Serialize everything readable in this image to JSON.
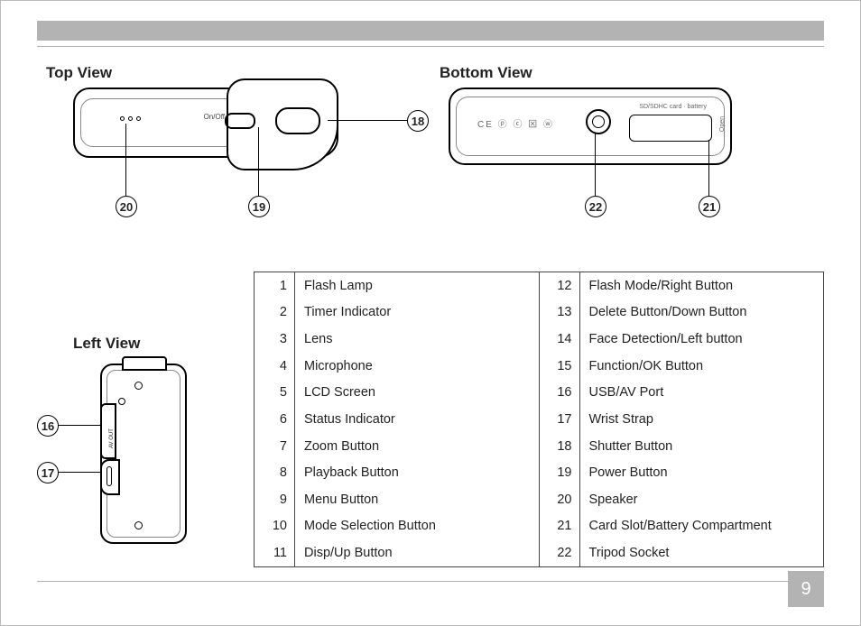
{
  "page_number": "9",
  "views": {
    "top": {
      "title": "Top View",
      "callouts": [
        "18",
        "19",
        "20"
      ],
      "onoff_label": "On/Off"
    },
    "bottom": {
      "title": "Bottom View",
      "callouts": [
        "21",
        "22"
      ],
      "slot_label": "SD/SDHC card · battery",
      "open_label": "Open",
      "symbols": "CE ⓟ ⓒ ⊠ ⓦ"
    },
    "left": {
      "title": "Left View",
      "callouts": [
        "16",
        "17"
      ],
      "port_label": "AV OUT"
    }
  },
  "parts": [
    {
      "n": "1",
      "label": "Flash Lamp"
    },
    {
      "n": "2",
      "label": "Timer Indicator"
    },
    {
      "n": "3",
      "label": "Lens"
    },
    {
      "n": "4",
      "label": "Microphone"
    },
    {
      "n": "5",
      "label": "LCD Screen"
    },
    {
      "n": "6",
      "label": "Status Indicator"
    },
    {
      "n": "7",
      "label": "Zoom Button"
    },
    {
      "n": "8",
      "label": "Playback Button"
    },
    {
      "n": "9",
      "label": "Menu Button"
    },
    {
      "n": "10",
      "label": "Mode Selection Button"
    },
    {
      "n": "11",
      "label": "Disp/Up Button"
    },
    {
      "n": "12",
      "label": "Flash Mode/Right Button"
    },
    {
      "n": "13",
      "label": "Delete Button/Down Button"
    },
    {
      "n": "14",
      "label": "Face Detection/Left button"
    },
    {
      "n": "15",
      "label": "Function/OK Button"
    },
    {
      "n": "16",
      "label": "USB/AV Port"
    },
    {
      "n": "17",
      "label": "Wrist Strap"
    },
    {
      "n": "18",
      "label": "Shutter Button"
    },
    {
      "n": "19",
      "label": "Power Button"
    },
    {
      "n": "20",
      "label": "Speaker"
    },
    {
      "n": "21",
      "label": "Card Slot/Battery Compartment"
    },
    {
      "n": "22",
      "label": "Tripod Socket"
    }
  ]
}
